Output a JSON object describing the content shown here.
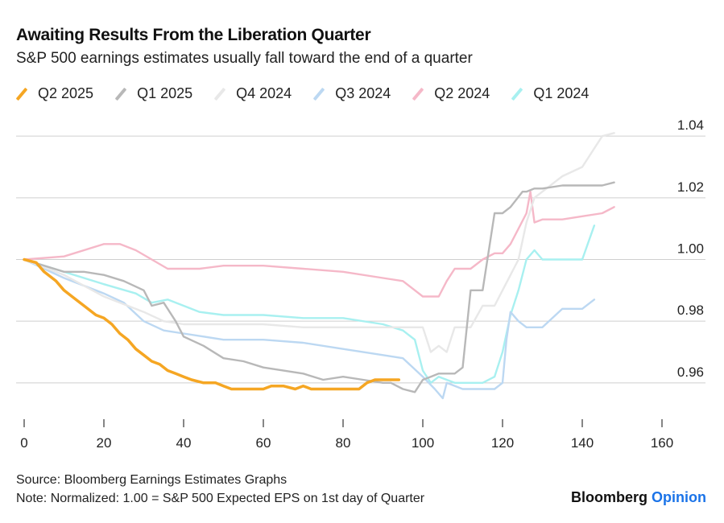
{
  "chart_data": {
    "type": "line",
    "title": "Awaiting Results From the Liberation Quarter",
    "subtitle": "S&P 500 earnings estimates usually fall toward the end of a quarter",
    "xlim": [
      0,
      160
    ],
    "ylim": [
      0.955,
      1.045
    ],
    "x_ticks": [
      0,
      20,
      40,
      60,
      80,
      100,
      120,
      140,
      160
    ],
    "y_ticks": [
      0.96,
      0.98,
      1.0,
      1.02,
      1.04
    ],
    "y_tick_labels": [
      "0.96",
      "0.98",
      "1.00",
      "1.02",
      "1.04"
    ],
    "y_axis_position": "right",
    "grid": "horizontal",
    "legend_position": "top",
    "series": [
      {
        "name": "Q1 2024",
        "color": "#a8f0f0",
        "x": [
          0,
          10,
          20,
          28,
          32,
          36,
          40,
          44,
          50,
          55,
          60,
          70,
          80,
          90,
          95,
          98,
          100,
          102,
          104,
          108,
          112,
          115,
          118,
          120,
          122,
          124,
          126,
          128,
          130,
          135,
          140,
          143
        ],
        "y": [
          1.0,
          0.996,
          0.992,
          0.989,
          0.986,
          0.987,
          0.985,
          0.983,
          0.982,
          0.982,
          0.982,
          0.981,
          0.981,
          0.979,
          0.977,
          0.974,
          0.964,
          0.96,
          0.962,
          0.96,
          0.96,
          0.96,
          0.962,
          0.97,
          0.982,
          0.99,
          1.0,
          1.003,
          1.0,
          1.0,
          1.0,
          1.011
        ]
      },
      {
        "name": "Q2 2024",
        "color": "#f5b8c8",
        "x": [
          0,
          10,
          20,
          24,
          28,
          36,
          40,
          44,
          50,
          60,
          70,
          80,
          90,
          95,
          100,
          104,
          106,
          108,
          112,
          115,
          118,
          120,
          122,
          124,
          126,
          127,
          128,
          130,
          135,
          140,
          145,
          148
        ],
        "y": [
          1.0,
          1.001,
          1.005,
          1.005,
          1.003,
          0.997,
          0.997,
          0.997,
          0.998,
          0.998,
          0.997,
          0.996,
          0.994,
          0.993,
          0.988,
          0.988,
          0.993,
          0.997,
          0.997,
          1.0,
          1.002,
          1.002,
          1.005,
          1.01,
          1.015,
          1.022,
          1.012,
          1.013,
          1.013,
          1.014,
          1.015,
          1.017
        ]
      },
      {
        "name": "Q3 2024",
        "color": "#bcd8f2",
        "x": [
          0,
          10,
          20,
          25,
          30,
          35,
          40,
          45,
          50,
          60,
          70,
          80,
          90,
          95,
          100,
          103,
          105,
          106,
          110,
          115,
          118,
          120,
          121,
          122,
          124,
          126,
          128,
          130,
          135,
          140,
          143
        ],
        "y": [
          1.0,
          0.994,
          0.989,
          0.986,
          0.98,
          0.977,
          0.976,
          0.975,
          0.974,
          0.974,
          0.973,
          0.971,
          0.969,
          0.968,
          0.962,
          0.958,
          0.955,
          0.96,
          0.958,
          0.958,
          0.958,
          0.96,
          0.974,
          0.983,
          0.98,
          0.978,
          0.978,
          0.978,
          0.984,
          0.984,
          0.987
        ]
      },
      {
        "name": "Q4 2024",
        "color": "#e8e8e8",
        "x": [
          0,
          10,
          20,
          30,
          35,
          40,
          45,
          50,
          60,
          70,
          80,
          90,
          100,
          102,
          104,
          106,
          108,
          110,
          112,
          115,
          118,
          120,
          122,
          124,
          126,
          128,
          130,
          135,
          140,
          145,
          148
        ],
        "y": [
          1.0,
          0.995,
          0.988,
          0.983,
          0.98,
          0.979,
          0.979,
          0.979,
          0.979,
          0.978,
          0.978,
          0.978,
          0.978,
          0.97,
          0.972,
          0.97,
          0.978,
          0.978,
          0.978,
          0.985,
          0.985,
          0.99,
          0.995,
          1.0,
          1.012,
          1.02,
          1.022,
          1.027,
          1.03,
          1.04,
          1.041
        ]
      },
      {
        "name": "Q1 2025",
        "color": "#b8b8b8",
        "x": [
          0,
          10,
          15,
          20,
          25,
          30,
          32,
          35,
          38,
          40,
          45,
          50,
          55,
          60,
          70,
          75,
          80,
          85,
          90,
          92,
          95,
          98,
          100,
          102,
          104,
          108,
          110,
          112,
          115,
          118,
          120,
          122,
          125,
          126,
          128,
          130,
          135,
          140,
          145,
          148
        ],
        "y": [
          1.0,
          0.996,
          0.996,
          0.995,
          0.993,
          0.99,
          0.985,
          0.986,
          0.98,
          0.975,
          0.972,
          0.968,
          0.967,
          0.965,
          0.963,
          0.961,
          0.962,
          0.961,
          0.96,
          0.96,
          0.958,
          0.957,
          0.961,
          0.962,
          0.963,
          0.963,
          0.965,
          0.99,
          0.99,
          1.015,
          1.015,
          1.017,
          1.022,
          1.022,
          1.023,
          1.023,
          1.024,
          1.024,
          1.024,
          1.025
        ]
      },
      {
        "name": "Q2 2025",
        "color": "#f5a623",
        "x": [
          0,
          3,
          5,
          8,
          10,
          12,
          15,
          18,
          20,
          22,
          24,
          26,
          28,
          30,
          32,
          34,
          36,
          38,
          40,
          42,
          45,
          48,
          50,
          52,
          55,
          58,
          60,
          62,
          65,
          68,
          70,
          72,
          75,
          78,
          80,
          82,
          84,
          86,
          88,
          90,
          92,
          94
        ],
        "y": [
          1.0,
          0.999,
          0.996,
          0.993,
          0.99,
          0.988,
          0.985,
          0.982,
          0.981,
          0.979,
          0.976,
          0.974,
          0.971,
          0.969,
          0.967,
          0.966,
          0.964,
          0.963,
          0.962,
          0.961,
          0.96,
          0.96,
          0.959,
          0.958,
          0.958,
          0.958,
          0.958,
          0.959,
          0.959,
          0.958,
          0.959,
          0.958,
          0.958,
          0.958,
          0.958,
          0.958,
          0.958,
          0.96,
          0.961,
          0.961,
          0.961,
          0.961
        ]
      }
    ]
  },
  "legend_order": [
    "Q2 2025",
    "Q1 2025",
    "Q4 2024",
    "Q3 2024",
    "Q2 2024",
    "Q1 2024"
  ],
  "source": "Source: Bloomberg Earnings Estimates Graphs",
  "note": "Note: Normalized: 1.00 = S&P 500 Expected EPS on 1st day of Quarter",
  "brand": {
    "name": "Bloomberg",
    "suffix": "Opinion",
    "suffix_color": "#1a73e8"
  }
}
